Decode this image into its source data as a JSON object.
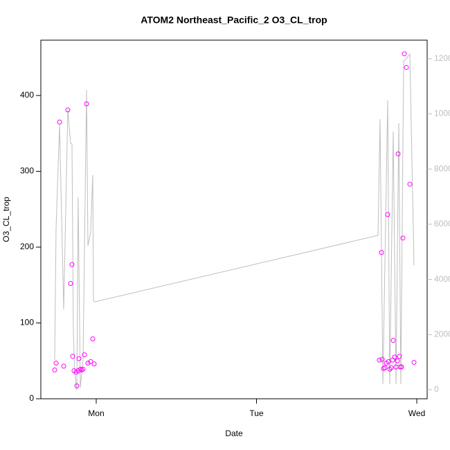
{
  "chart_data": {
    "type": "scatter",
    "title": "ATOM2 Northeast_Pacific_2 O3_CL_trop",
    "xlabel": "Date",
    "ylabel": "O3_CL_trop",
    "xlim": [
      -8.29,
      49.55
    ],
    "xticks": [
      {
        "value": 0,
        "label": "Mon"
      },
      {
        "value": 24,
        "label": "Tue"
      },
      {
        "value": 48,
        "label": "Wed"
      }
    ],
    "ylim": [
      0,
      473
    ],
    "yticks": [
      0,
      100,
      200,
      300,
      400
    ],
    "y2lim": [
      -326,
      12672
    ],
    "y2ticks": [
      0,
      2000,
      4000,
      6000,
      8000,
      10000,
      12000
    ],
    "series": [
      {
        "type": "scatter",
        "color": "#ff00ff",
        "x": [
          -6.22,
          -6.01,
          -5.49,
          -4.87,
          -4.25,
          -3.84,
          -3.63,
          -3.52,
          -3.32,
          -3.01,
          -2.9,
          -2.7,
          -2.59,
          -2.38,
          -2.18,
          -1.97,
          -1.76,
          -1.45,
          -1.24,
          -0.83,
          -0.52,
          -0.31,
          42.4,
          42.71,
          42.82,
          43.02,
          43.23,
          43.44,
          43.64,
          43.75,
          43.95,
          44.16,
          44.37,
          44.47,
          44.68,
          44.89,
          45.09,
          45.2,
          45.4,
          45.51,
          45.71,
          45.92,
          46.13,
          46.44,
          46.96,
          47.58
        ],
        "values": [
          38,
          47,
          365,
          43,
          381,
          152,
          177,
          56,
          37,
          35,
          17,
          37,
          53,
          39,
          38,
          39,
          58,
          389,
          47,
          49,
          79,
          46,
          51,
          193,
          52,
          40,
          41,
          47,
          243,
          49,
          39,
          41,
          51,
          77,
          55,
          42,
          50,
          323,
          56,
          42,
          42,
          212,
          455,
          437,
          283,
          48
        ]
      },
      {
        "type": "line",
        "axis": "y2",
        "color": "#bebebe",
        "x": [
          -6.22,
          -6.01,
          -5.49,
          -4.87,
          -4.25,
          -3.84,
          -3.63,
          -3.42,
          -3.21,
          -2.9,
          -2.7,
          -2.38,
          -1.97,
          -1.45,
          -1.24,
          -0.83,
          -0.52,
          -0.41,
          -0.21,
          42.19,
          42.5,
          42.92,
          43.64,
          43.95,
          44.47,
          44.89,
          45.3,
          45.61,
          46.03,
          46.23,
          46.96,
          47.58
        ],
        "values": [
          1079,
          5847,
          9611,
          2911,
          10163,
          8934,
          8909,
          2083,
          577,
          0,
          6976,
          75,
          1079,
          10866,
          5220,
          5721,
          7779,
          3212,
          3187,
          5596,
          9812,
          201,
          10489,
          200,
          9360,
          200,
          9661,
          200,
          11920,
          11945,
          12170,
          4517
        ]
      }
    ]
  }
}
